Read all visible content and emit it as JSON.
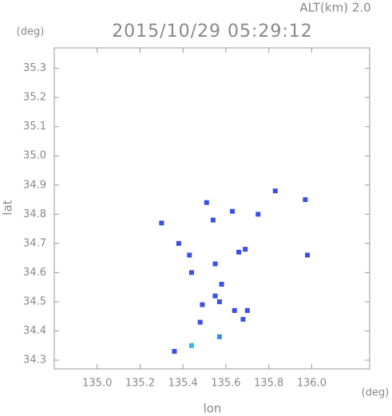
{
  "chart_data": {
    "type": "scatter",
    "title": "2015/10/29 05:29:12",
    "altitude_label": "ALT(km) 2.0",
    "y_unit": "(deg)",
    "x_unit": "(deg)",
    "x_label": "lon",
    "y_label": "lat",
    "xlim": [
      134.8,
      136.27
    ],
    "ylim": [
      34.27,
      35.37
    ],
    "xticks": [
      {
        "value": 135,
        "label": "135.0"
      },
      135.2,
      135.4,
      135.6,
      135.8,
      {
        "value": 136,
        "label": "136.0"
      }
    ],
    "yticks": [
      34.3,
      34.4,
      34.5,
      34.6,
      34.7,
      34.8,
      34.9,
      {
        "value": 35,
        "label": "35.0"
      },
      35.1,
      35.2,
      35.3
    ],
    "x": [
      135.83,
      135.97,
      135.98,
      135.63,
      135.75,
      135.51,
      135.54,
      135.3,
      135.38,
      135.43,
      135.55,
      135.44,
      135.58,
      135.55,
      135.57,
      135.49,
      135.64,
      135.7,
      135.68,
      135.48,
      135.57,
      135.44,
      135.36,
      135.66,
      135.69
    ],
    "values": [
      34.88,
      34.85,
      34.66,
      34.81,
      34.8,
      34.84,
      34.78,
      34.77,
      34.7,
      34.66,
      34.63,
      34.6,
      34.56,
      34.52,
      34.5,
      34.49,
      34.47,
      34.47,
      34.44,
      34.43,
      34.38,
      34.35,
      34.33,
      34.67,
      34.68
    ],
    "colors": [
      "#3a4ee8",
      "#3a4ee8",
      "#3a4ee8",
      "#3a4ee8",
      "#3a4ee8",
      "#3a4ee8",
      "#3a4ee8",
      "#3a4ee8",
      "#3a4ee8",
      "#3a4ee8",
      "#3a4ee8",
      "#3a4ee8",
      "#3a4ee8",
      "#3a4ee8",
      "#3a4ee8",
      "#3a4ee8",
      "#3a4ee8",
      "#3a4ee8",
      "#3a4ee8",
      "#3a4ee8",
      "#2e8ee8",
      "#36b0ea",
      "#3a4ee8",
      "#3a4ee8",
      "#3a4ee8"
    ]
  }
}
